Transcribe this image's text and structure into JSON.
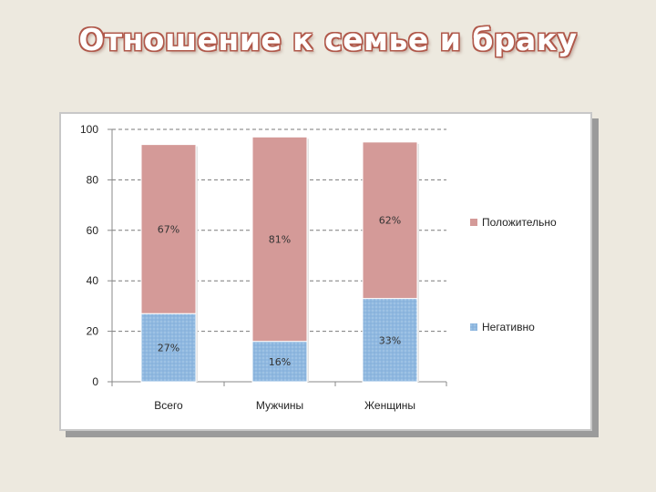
{
  "slide": {
    "title": "Отношение к семье и браку"
  },
  "colors": {
    "positive": "#d49a98",
    "negative": "#8fb8e0",
    "grid": "#7a7a7a",
    "title_outline": "#b0584a",
    "background": "#ede9df"
  },
  "chart_data": {
    "type": "bar",
    "stacked": true,
    "categories": [
      "Всего",
      "Мужчины",
      "Женщины"
    ],
    "ylim": [
      0,
      100
    ],
    "yticks": [
      "0",
      "20",
      "40",
      "60",
      "80",
      "100"
    ],
    "grid": "dashed horizontal",
    "legend_position": "right",
    "series": [
      {
        "name": "Негативно",
        "values": [
          27,
          16,
          33
        ],
        "labels": [
          "27%",
          "16%",
          "33%"
        ],
        "color": "#8fb8e0"
      },
      {
        "name": "Положительно",
        "values": [
          67,
          81,
          62
        ],
        "labels": [
          "67%",
          "81%",
          "62%"
        ],
        "color": "#d49a98"
      }
    ],
    "legend": [
      "Положительно",
      "Негативно"
    ]
  }
}
